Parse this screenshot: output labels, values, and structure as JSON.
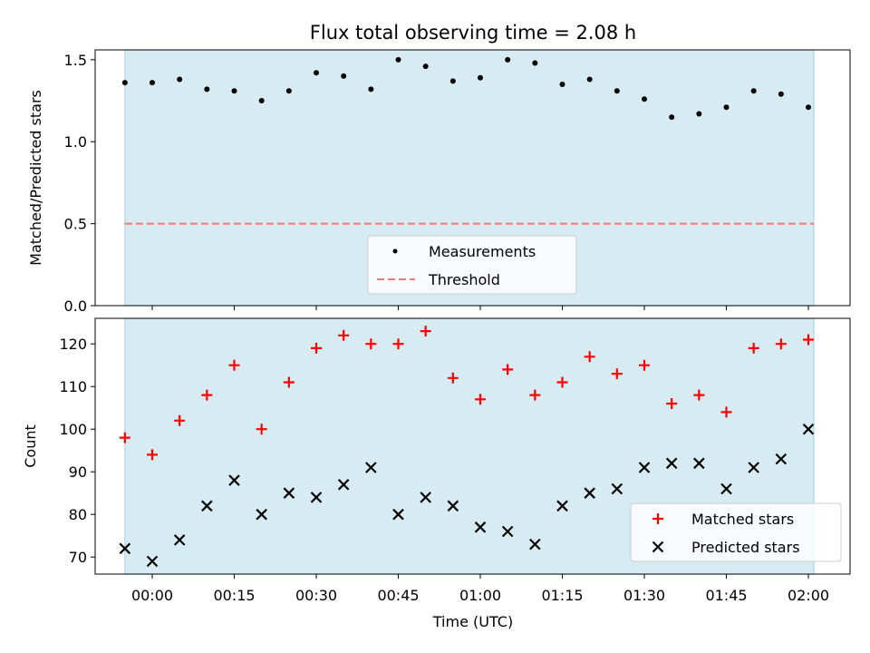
{
  "chart_data": [
    {
      "type": "scatter",
      "title": "Flux total observing time = 2.08 h",
      "xlabel": "",
      "ylabel": "Matched/Predicted stars",
      "ylim": [
        0,
        1.56
      ],
      "yticks": [
        "0.0",
        "0.5",
        "1.0",
        "1.5"
      ],
      "shaded_region": {
        "start": "23:55",
        "end": "02:01",
        "color": "#add8e6"
      },
      "legend": {
        "position": "lower-center"
      },
      "series": [
        {
          "name": "Measurements",
          "marker": "dot",
          "color": "#000000",
          "x": [
            "23:55",
            "00:00",
            "00:05",
            "00:10",
            "00:15",
            "00:20",
            "00:25",
            "00:30",
            "00:35",
            "00:40",
            "00:45",
            "00:50",
            "00:55",
            "01:00",
            "01:05",
            "01:10",
            "01:15",
            "01:20",
            "01:25",
            "01:30",
            "01:35",
            "01:40",
            "01:45",
            "01:50",
            "01:55",
            "02:00"
          ],
          "y": [
            1.36,
            1.36,
            1.38,
            1.32,
            1.31,
            1.25,
            1.31,
            1.42,
            1.4,
            1.32,
            1.5,
            1.46,
            1.37,
            1.39,
            1.5,
            1.48,
            1.35,
            1.38,
            1.31,
            1.26,
            1.15,
            1.17,
            1.21,
            1.31,
            1.29,
            1.21
          ]
        },
        {
          "name": "Threshold",
          "marker": "dashed-line",
          "color": "#f07878",
          "y": 0.5
        }
      ]
    },
    {
      "type": "scatter",
      "title": "",
      "xlabel": "Time (UTC)",
      "ylabel": "Count",
      "ylim": [
        66,
        126
      ],
      "yticks": [
        "70",
        "80",
        "90",
        "100",
        "110",
        "120"
      ],
      "xticks": [
        "00:00",
        "00:15",
        "00:30",
        "00:45",
        "01:00",
        "01:15",
        "01:30",
        "01:45",
        "02:00"
      ],
      "shaded_region": {
        "start": "23:55",
        "end": "02:01",
        "color": "#add8e6"
      },
      "legend": {
        "position": "lower-right"
      },
      "series": [
        {
          "name": "Matched stars",
          "marker": "plus",
          "color": "#ff0000",
          "x": [
            "23:55",
            "00:00",
            "00:05",
            "00:10",
            "00:15",
            "00:20",
            "00:25",
            "00:30",
            "00:35",
            "00:40",
            "00:45",
            "00:50",
            "00:55",
            "01:00",
            "01:05",
            "01:10",
            "01:15",
            "01:20",
            "01:25",
            "01:30",
            "01:35",
            "01:40",
            "01:45",
            "01:50",
            "01:55",
            "02:00"
          ],
          "y": [
            98,
            94,
            102,
            108,
            115,
            100,
            111,
            119,
            122,
            120,
            120,
            123,
            112,
            107,
            114,
            108,
            111,
            117,
            113,
            115,
            106,
            108,
            104,
            119,
            120,
            121
          ]
        },
        {
          "name": "Predicted stars",
          "marker": "x",
          "color": "#000000",
          "x": [
            "23:55",
            "00:00",
            "00:05",
            "00:10",
            "00:15",
            "00:20",
            "00:25",
            "00:30",
            "00:35",
            "00:40",
            "00:45",
            "00:50",
            "00:55",
            "01:00",
            "01:05",
            "01:10",
            "01:15",
            "01:20",
            "01:25",
            "01:30",
            "01:35",
            "01:40",
            "01:45",
            "01:50",
            "01:55",
            "02:00"
          ],
          "y": [
            72,
            69,
            74,
            82,
            88,
            80,
            85,
            84,
            87,
            91,
            80,
            84,
            82,
            77,
            76,
            73,
            82,
            85,
            86,
            91,
            92,
            92,
            86,
            91,
            93,
            100
          ]
        }
      ]
    }
  ]
}
